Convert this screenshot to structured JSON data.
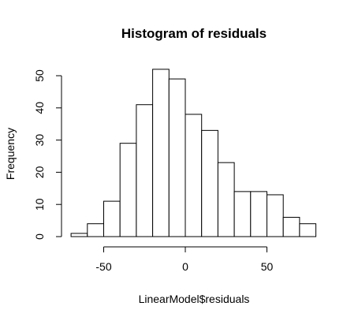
{
  "chart_data": {
    "type": "bar",
    "title": "Histogram of residuals",
    "xlabel": "LinearModel$residuals",
    "ylabel": "Frequency",
    "bin_edges": [
      -70,
      -60,
      -50,
      -40,
      -30,
      -20,
      -10,
      0,
      10,
      20,
      30,
      40,
      50,
      60,
      70,
      80
    ],
    "values": [
      1,
      4,
      11,
      29,
      41,
      52,
      49,
      38,
      33,
      23,
      14,
      14,
      13,
      6,
      4
    ],
    "xticks": [
      -50,
      0,
      50
    ],
    "yticks": [
      0,
      10,
      20,
      30,
      40,
      50
    ],
    "xlim": [
      -70,
      80
    ],
    "ylim": [
      0,
      52
    ],
    "grid": false,
    "legend": "none",
    "bar_fill": "#ffffff",
    "bar_stroke": "#000000"
  }
}
